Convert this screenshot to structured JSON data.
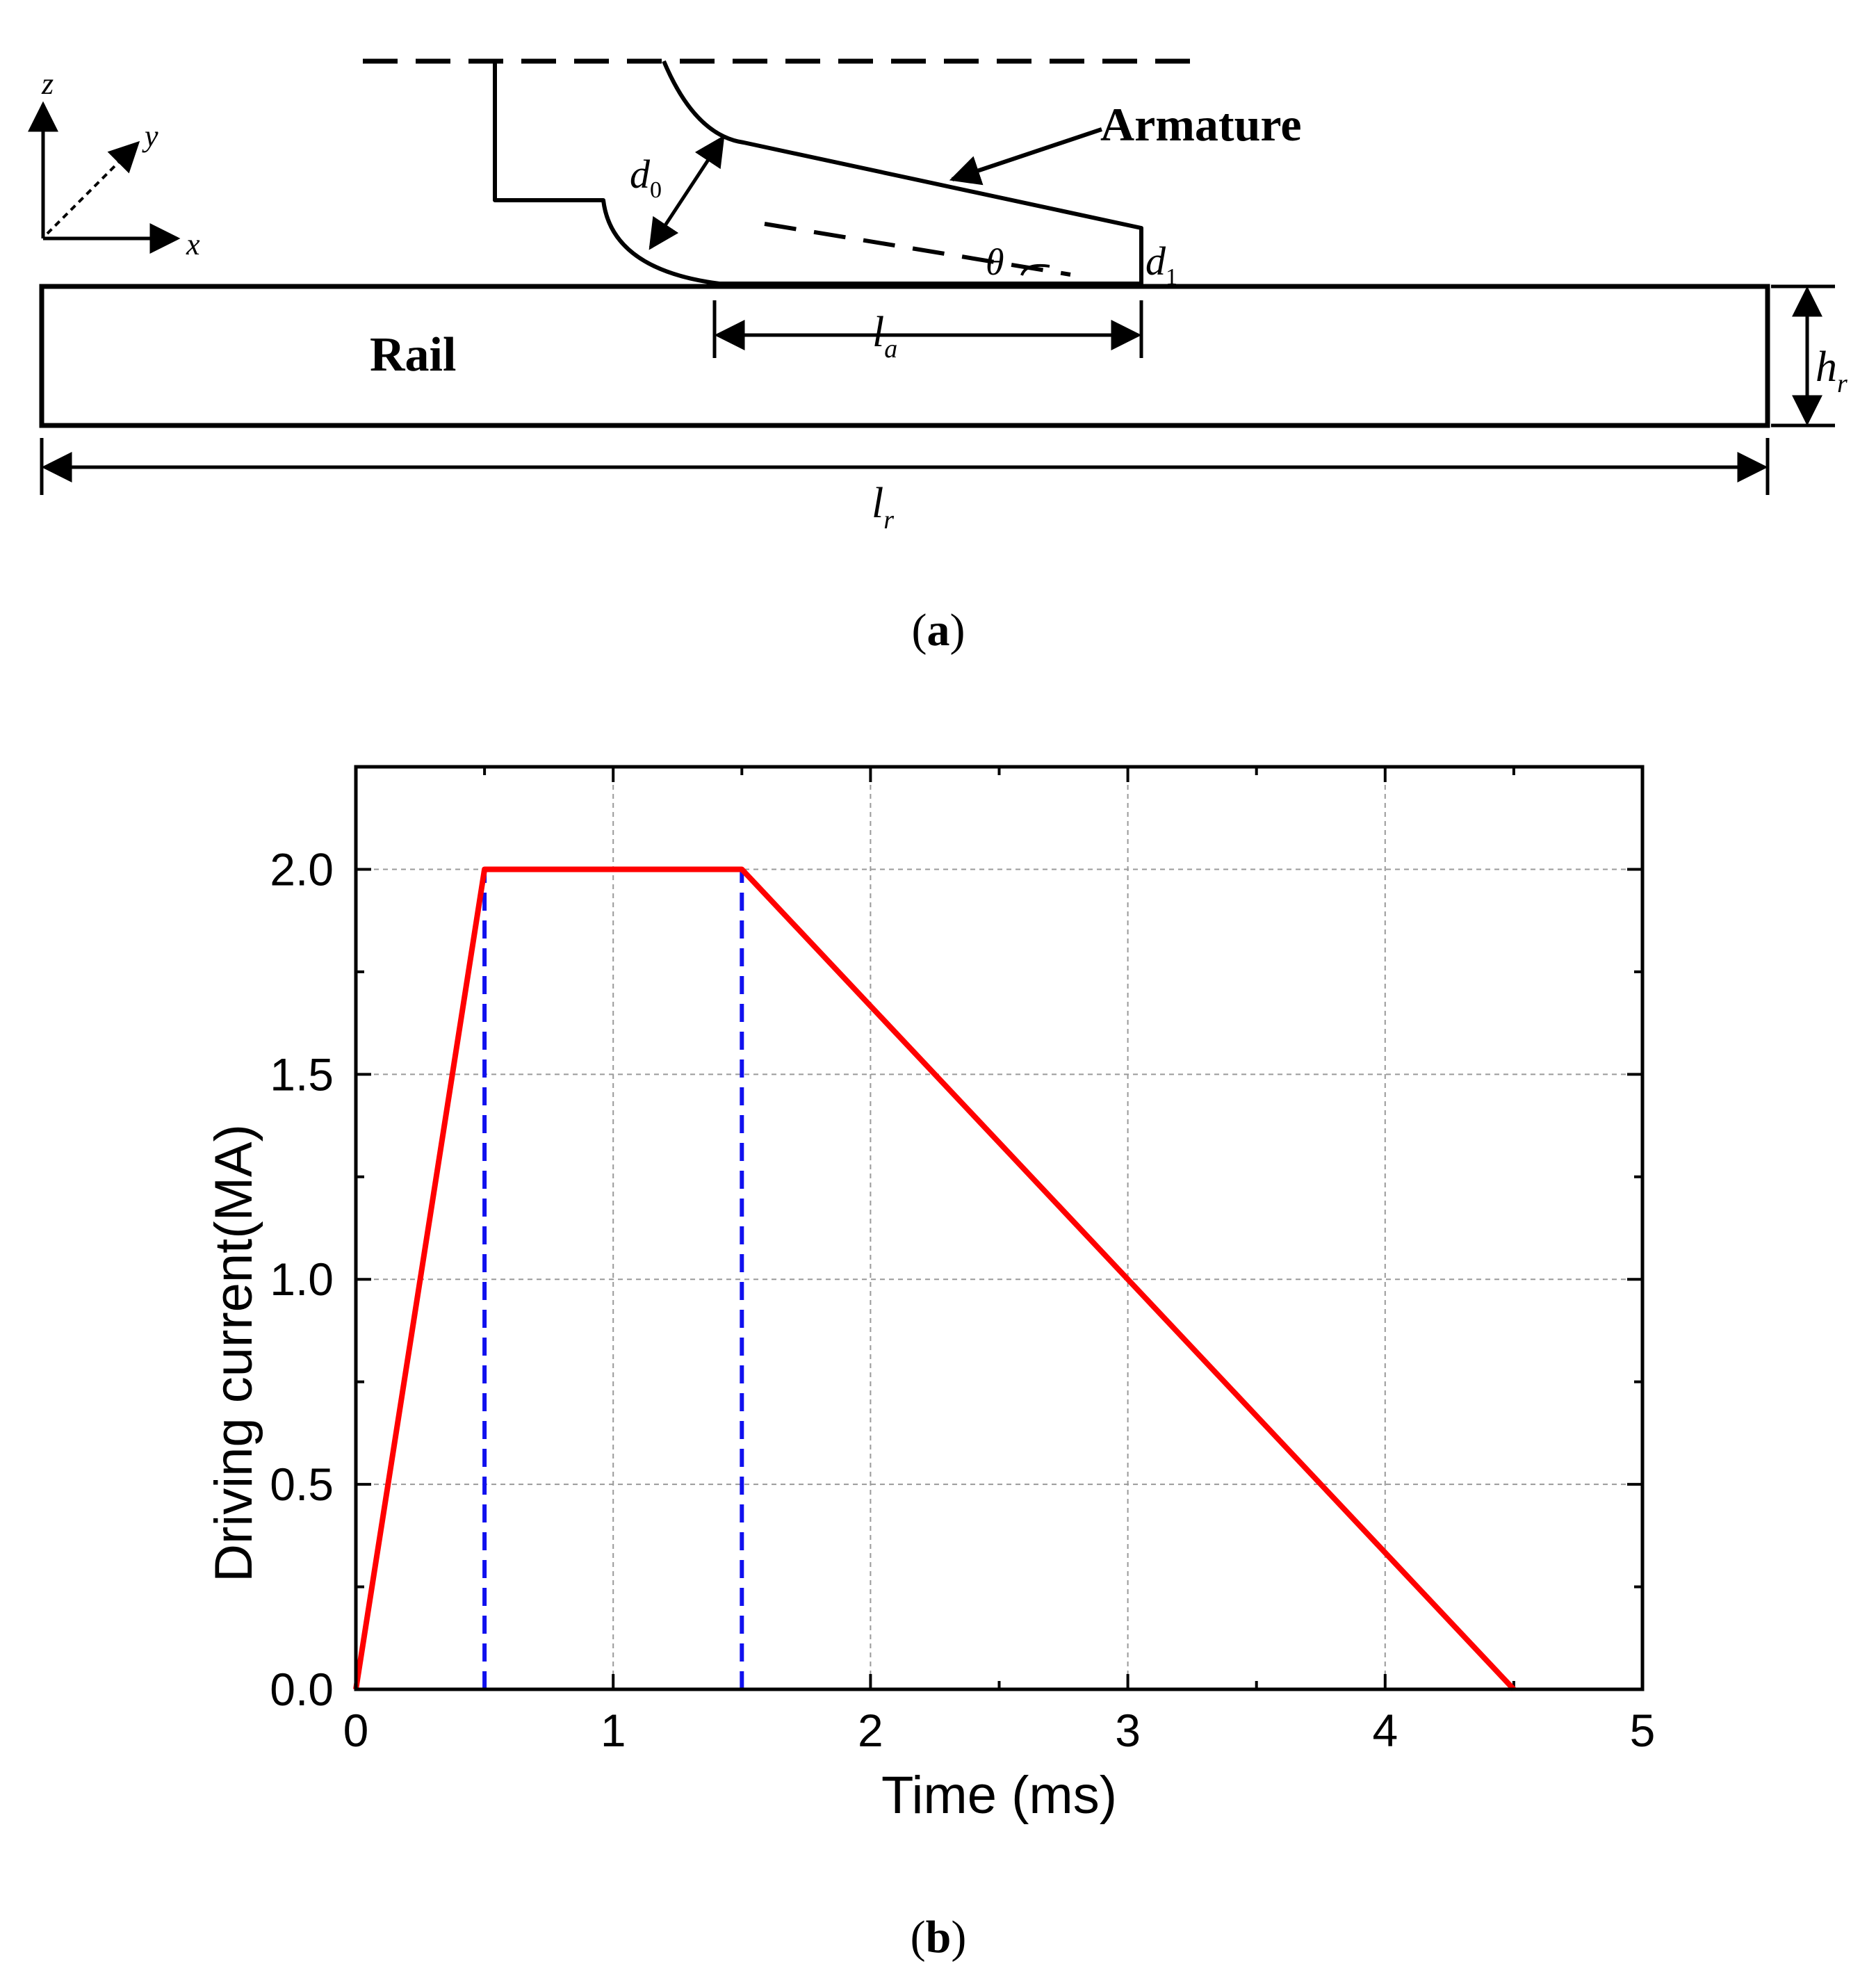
{
  "figure": {
    "panel_a": {
      "caption": "(a)",
      "caption_letter": "a",
      "axes_labels": {
        "z": "z",
        "y": "y",
        "x": "x"
      },
      "labels": {
        "armature": "Armature",
        "rail": "Rail",
        "d0": "d",
        "d0_sub": "0",
        "d1": "d",
        "d1_sub": "1",
        "theta": "θ",
        "la": "l",
        "la_sub": "a",
        "hr": "h",
        "hr_sub": "r",
        "lr": "l",
        "lr_sub": "r"
      }
    },
    "panel_b": {
      "caption": "(b)",
      "caption_letter": "b"
    }
  },
  "chart_data": {
    "type": "line",
    "title": "",
    "xlabel": "Time (ms)",
    "ylabel": "Driving current(MA)",
    "xlim": [
      0,
      5
    ],
    "ylim": [
      0,
      2.25
    ],
    "xticks": [
      "0",
      "1",
      "2",
      "3",
      "4",
      "5"
    ],
    "yticks": [
      "0.0",
      "0.5",
      "1.0",
      "1.5",
      "2.0"
    ],
    "grid": true,
    "series": [
      {
        "name": "Driving current",
        "color": "#ff0000",
        "x": [
          0,
          0.5,
          1.5,
          4.5
        ],
        "y": [
          0,
          2.0,
          2.0,
          0
        ]
      }
    ],
    "vlines": [
      {
        "x": 0.5,
        "color": "#1010ee",
        "style": "dashed"
      },
      {
        "x": 1.5,
        "color": "#1010ee",
        "style": "dashed"
      }
    ]
  }
}
